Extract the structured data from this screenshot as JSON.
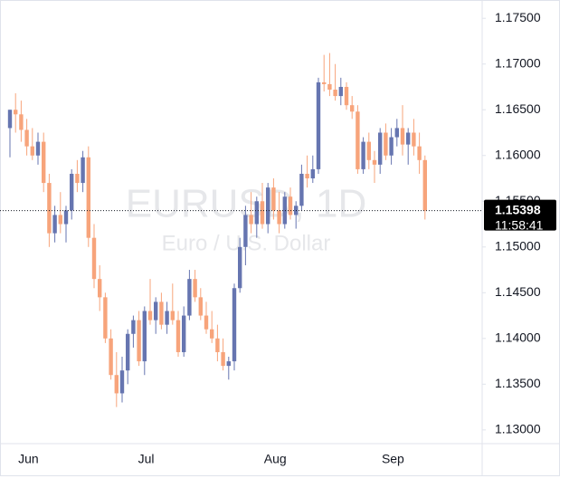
{
  "chart_data": {
    "type": "candlestick",
    "title": "EURUSD, 1D",
    "subtitle": "Euro / U.S. Dollar",
    "categories": [
      null,
      null,
      "Jun",
      null,
      null,
      null,
      null,
      null,
      null,
      null,
      null,
      null,
      null,
      null,
      null,
      null,
      null,
      null,
      null,
      null,
      null,
      null,
      null,
      "Jul",
      null,
      null,
      null,
      null,
      null,
      null,
      null,
      null,
      null,
      null,
      null,
      null,
      null,
      null,
      null,
      null,
      null,
      null,
      null,
      null,
      null,
      null,
      "Aug",
      null,
      null,
      null,
      null,
      null,
      null,
      null,
      null,
      null,
      null,
      null,
      null,
      null,
      null,
      null,
      null,
      null,
      null,
      null,
      null,
      "Sep",
      null,
      null,
      null,
      null,
      null,
      null,
      null
    ],
    "open": [
      1.163,
      1.165,
      1.1645,
      1.1628,
      1.161,
      1.16,
      1.1615,
      1.157,
      1.1515,
      1.1535,
      1.1525,
      1.154,
      1.158,
      1.157,
      1.1598,
      1.151,
      1.1465,
      1.1445,
      1.14,
      1.136,
      1.134,
      1.1365,
      1.1405,
      1.142,
      1.1375,
      1.143,
      1.142,
      1.144,
      1.1415,
      1.143,
      1.142,
      1.1385,
      1.1425,
      1.1465,
      1.1445,
      1.1425,
      1.141,
      1.14,
      1.1385,
      1.137,
      1.1375,
      1.1455,
      1.15,
      1.1535,
      1.1525,
      1.155,
      1.1525,
      1.1565,
      1.154,
      1.1525,
      1.1555,
      1.1535,
      1.1545,
      1.158,
      1.1575,
      1.1585,
      1.168,
      1.1678,
      1.1672,
      1.1665,
      1.1675,
      1.1655,
      1.1648,
      1.1585,
      1.1615,
      1.1595,
      1.159,
      1.1625,
      1.16,
      1.162,
      1.163,
      1.1612,
      1.1625,
      1.161,
      1.1595
    ],
    "high": [
      1.165,
      1.1668,
      1.166,
      1.164,
      1.163,
      1.1625,
      1.1625,
      1.158,
      1.1545,
      1.156,
      1.1545,
      1.1585,
      1.1595,
      1.1605,
      1.161,
      1.1525,
      1.148,
      1.145,
      1.141,
      1.1385,
      1.138,
      1.141,
      1.1425,
      1.143,
      1.1435,
      1.1465,
      1.1445,
      1.145,
      1.144,
      1.146,
      1.143,
      1.1435,
      1.1475,
      1.1475,
      1.1455,
      1.144,
      1.143,
      1.1415,
      1.14,
      1.138,
      1.146,
      1.151,
      1.1545,
      1.156,
      1.1555,
      1.157,
      1.157,
      1.1575,
      1.156,
      1.156,
      1.1565,
      1.155,
      1.159,
      1.16,
      1.16,
      1.1685,
      1.171,
      1.1712,
      1.17,
      1.1685,
      1.168,
      1.1665,
      1.1655,
      1.162,
      1.1625,
      1.1605,
      1.163,
      1.1635,
      1.163,
      1.164,
      1.1655,
      1.163,
      1.164,
      1.1625,
      1.16
    ],
    "low": [
      1.1598,
      1.1625,
      1.1615,
      1.16,
      1.1595,
      1.159,
      1.156,
      1.15,
      1.1505,
      1.1515,
      1.1505,
      1.153,
      1.156,
      1.156,
      1.15,
      1.1455,
      1.143,
      1.1395,
      1.1355,
      1.1325,
      1.133,
      1.135,
      1.139,
      1.137,
      1.136,
      1.1415,
      1.1405,
      1.141,
      1.1405,
      1.1415,
      1.138,
      1.138,
      1.142,
      1.144,
      1.142,
      1.1405,
      1.1395,
      1.1375,
      1.1365,
      1.1355,
      1.1365,
      1.145,
      1.148,
      1.1515,
      1.151,
      1.152,
      1.1515,
      1.153,
      1.1515,
      1.152,
      1.153,
      1.152,
      1.154,
      1.1565,
      1.157,
      1.158,
      1.167,
      1.1665,
      1.166,
      1.1655,
      1.165,
      1.164,
      1.158,
      1.158,
      1.1585,
      1.157,
      1.158,
      1.1595,
      1.159,
      1.161,
      1.16,
      1.159,
      1.16,
      1.158,
      1.153
    ],
    "close": [
      1.165,
      1.1645,
      1.1628,
      1.161,
      1.16,
      1.1615,
      1.157,
      1.1515,
      1.1535,
      1.1525,
      1.154,
      1.158,
      1.157,
      1.1598,
      1.151,
      1.1465,
      1.1445,
      1.14,
      1.136,
      1.134,
      1.1365,
      1.1405,
      1.142,
      1.1375,
      1.143,
      1.142,
      1.144,
      1.1415,
      1.143,
      1.142,
      1.1385,
      1.1425,
      1.1465,
      1.1445,
      1.1425,
      1.141,
      1.14,
      1.1385,
      1.137,
      1.1375,
      1.1455,
      1.15,
      1.1535,
      1.1525,
      1.155,
      1.1525,
      1.1565,
      1.154,
      1.1525,
      1.1555,
      1.1535,
      1.1545,
      1.158,
      1.1575,
      1.1585,
      1.168,
      1.1678,
      1.1672,
      1.1665,
      1.1675,
      1.1655,
      1.1648,
      1.1585,
      1.1615,
      1.1595,
      1.159,
      1.1625,
      1.16,
      1.162,
      1.163,
      1.1612,
      1.1625,
      1.161,
      1.1595,
      1.15398
    ],
    "up_color": "#6675b0",
    "down_color": "#f7a47b",
    "ylim": [
      1.1285,
      1.177
    ],
    "yticks": [
      {
        "value": 1.13,
        "label": "1.13000"
      },
      {
        "value": 1.135,
        "label": "1.13500"
      },
      {
        "value": 1.14,
        "label": "1.14000"
      },
      {
        "value": 1.145,
        "label": "1.14500"
      },
      {
        "value": 1.15,
        "label": "1.15000"
      },
      {
        "value": 1.155,
        "label": "1.15500"
      },
      {
        "value": 1.16,
        "label": "1.16000"
      },
      {
        "value": 1.165,
        "label": "1.16500"
      },
      {
        "value": 1.17,
        "label": "1.17000"
      },
      {
        "value": 1.175,
        "label": "1.17500"
      }
    ],
    "last_price": {
      "value": 1.15398,
      "label": "1.15398"
    },
    "countdown": "11:58:41"
  }
}
